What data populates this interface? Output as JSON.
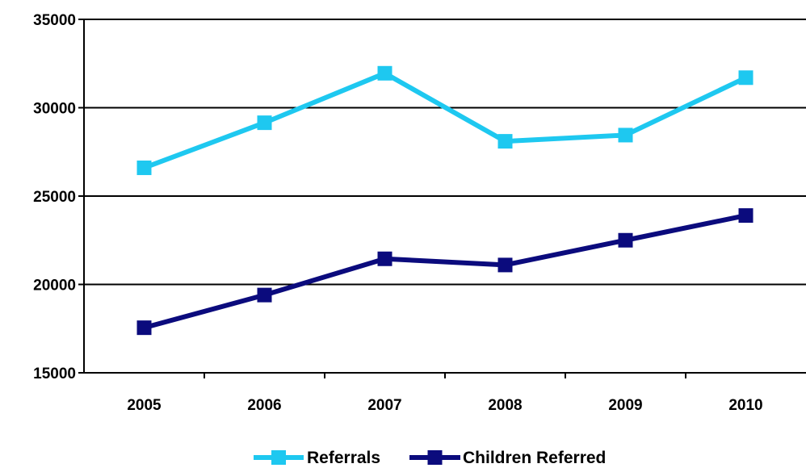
{
  "chart_data": {
    "type": "line",
    "categories": [
      "2005",
      "2006",
      "2007",
      "2008",
      "2009",
      "2010"
    ],
    "series": [
      {
        "name": "Referrals",
        "color": "#1ec8f0",
        "values": [
          26600,
          29150,
          31950,
          28100,
          28450,
          31700
        ]
      },
      {
        "name": "Children Referred",
        "color": "#0b0b7d",
        "values": [
          17550,
          19400,
          21450,
          21100,
          22500,
          23900
        ]
      }
    ],
    "ylim": [
      15000,
      35000
    ],
    "yticks": [
      "15000",
      "20000",
      "25000",
      "30000",
      "35000"
    ],
    "title": "",
    "xlabel": "",
    "ylabel": "",
    "grid": "horizontal",
    "legend_position": "bottom",
    "axis_color": "#000000"
  }
}
